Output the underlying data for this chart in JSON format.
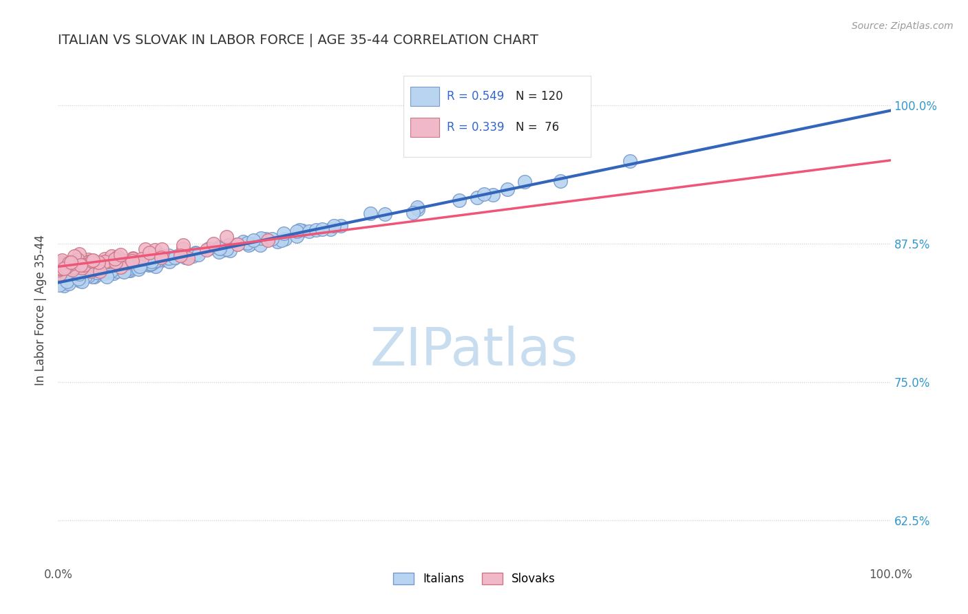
{
  "title": "ITALIAN VS SLOVAK IN LABOR FORCE | AGE 35-44 CORRELATION CHART",
  "source": "Source: ZipAtlas.com",
  "ylabel": "In Labor Force | Age 35-44",
  "xlim": [
    0.0,
    1.0
  ],
  "ylim": [
    0.585,
    1.045
  ],
  "yticks": [
    0.625,
    0.75,
    0.875,
    1.0
  ],
  "ytick_labels": [
    "62.5%",
    "75.0%",
    "87.5%",
    "100.0%"
  ],
  "xticks": [
    0.0,
    0.25,
    0.5,
    0.75,
    1.0
  ],
  "xtick_labels": [
    "0.0%",
    "",
    "",
    "",
    "100.0%"
  ],
  "italian_color": "#b8d4f0",
  "slovak_color": "#f0b8c8",
  "italian_edge": "#7799cc",
  "slovak_edge": "#cc7788",
  "italian_line_color": "#3366bb",
  "slovak_line_color": "#ee5577",
  "legend_r_color": "#3366cc",
  "legend_n_color": "#333333",
  "italian_R": 0.549,
  "italian_N": 120,
  "slovak_R": 0.339,
  "slovak_N": 76,
  "background_color": "#ffffff",
  "grid_color": "#cccccc",
  "title_color": "#333333",
  "source_color": "#999999",
  "watermark_color": "#c8ddf0"
}
